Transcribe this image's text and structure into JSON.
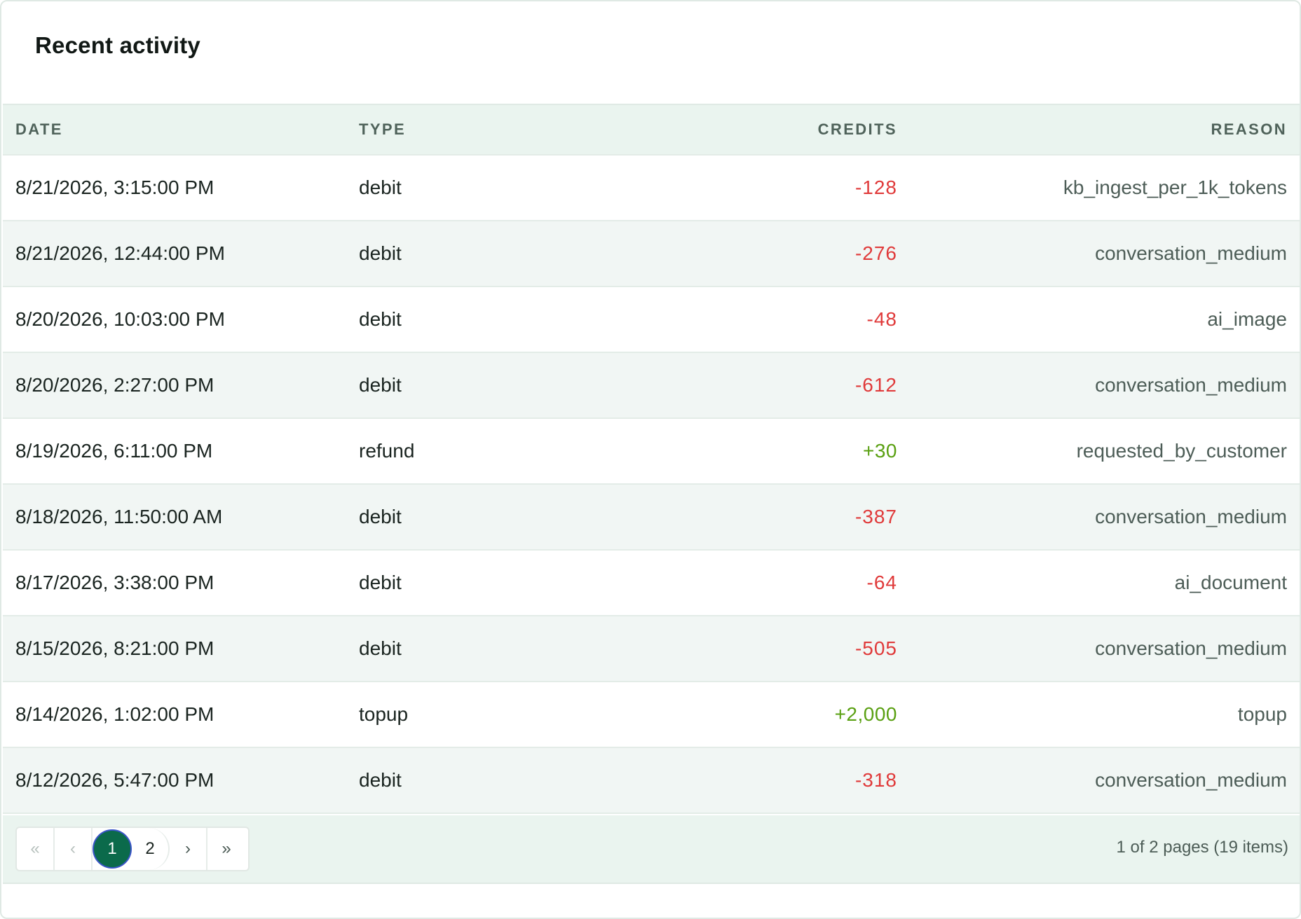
{
  "title": "Recent activity",
  "columns": {
    "date": "DATE",
    "type": "TYPE",
    "credits": "CREDITS",
    "reason": "REASON"
  },
  "rows": [
    {
      "date": "8/21/2026, 3:15:00 PM",
      "type": "debit",
      "credits": "-128",
      "reason": "kb_ingest_per_1k_tokens"
    },
    {
      "date": "8/21/2026, 12:44:00 PM",
      "type": "debit",
      "credits": "-276",
      "reason": "conversation_medium"
    },
    {
      "date": "8/20/2026, 10:03:00 PM",
      "type": "debit",
      "credits": "-48",
      "reason": "ai_image"
    },
    {
      "date": "8/20/2026, 2:27:00 PM",
      "type": "debit",
      "credits": "-612",
      "reason": "conversation_medium"
    },
    {
      "date": "8/19/2026, 6:11:00 PM",
      "type": "refund",
      "credits": "+30",
      "reason": "requested_by_customer"
    },
    {
      "date": "8/18/2026, 11:50:00 AM",
      "type": "debit",
      "credits": "-387",
      "reason": "conversation_medium"
    },
    {
      "date": "8/17/2026, 3:38:00 PM",
      "type": "debit",
      "credits": "-64",
      "reason": "ai_document"
    },
    {
      "date": "8/15/2026, 8:21:00 PM",
      "type": "debit",
      "credits": "-505",
      "reason": "conversation_medium"
    },
    {
      "date": "8/14/2026, 1:02:00 PM",
      "type": "topup",
      "credits": "+2,000",
      "reason": "topup"
    },
    {
      "date": "8/12/2026, 5:47:00 PM",
      "type": "debit",
      "credits": "-318",
      "reason": "conversation_medium"
    }
  ],
  "pagination": {
    "first_icon": "double-chevron-left-icon",
    "prev_icon": "chevron-left-icon",
    "next_icon": "chevron-right-icon",
    "last_icon": "double-chevron-right-icon",
    "pages": [
      "1",
      "2"
    ],
    "current_page": "1",
    "info": "1 of 2 pages (19 items)"
  },
  "colors": {
    "accent": "#0b6a4b",
    "negative": "#e03a3a",
    "positive": "#5aa012",
    "header_bg": "#eaf4ef"
  }
}
